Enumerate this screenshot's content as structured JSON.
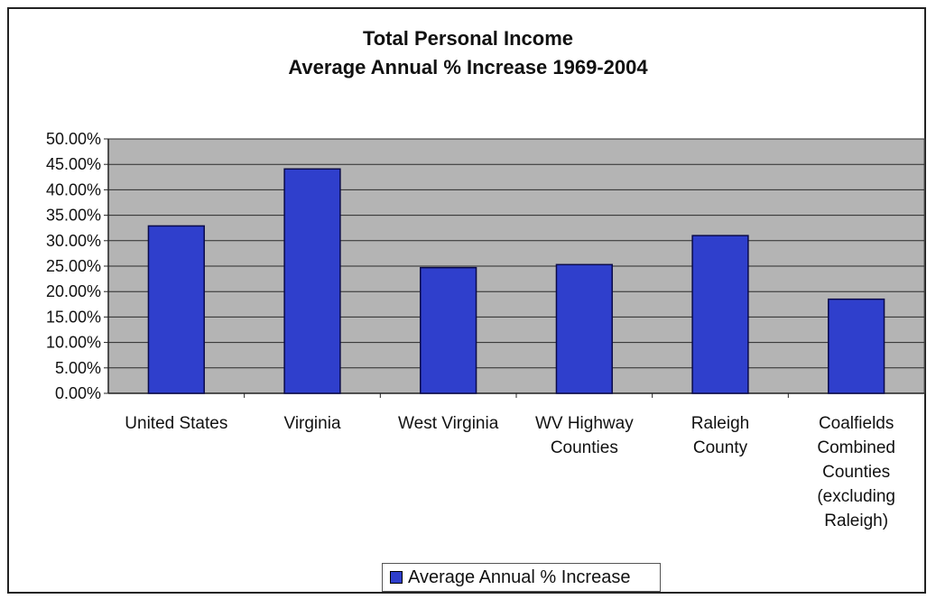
{
  "chart_data": {
    "type": "bar",
    "title_lines": [
      "Total Personal Income",
      "Average Annual % Increase 1969-2004"
    ],
    "categories": [
      [
        "United States"
      ],
      [
        "Virginia"
      ],
      [
        "West Virginia"
      ],
      [
        "WV Highway",
        "Counties"
      ],
      [
        "Raleigh",
        "County"
      ],
      [
        "Coalfields",
        "Combined",
        "Counties",
        "(excluding",
        "Raleigh)"
      ]
    ],
    "series": [
      {
        "name": "Average Annual % Increase",
        "values": [
          32.9,
          44.1,
          24.7,
          25.3,
          31.0,
          18.5
        ]
      }
    ],
    "ylim": [
      0,
      50
    ],
    "ytick_step": 5,
    "ytick_labels": [
      "0.00%",
      "5.00%",
      "10.00%",
      "15.00%",
      "20.00%",
      "25.00%",
      "30.00%",
      "35.00%",
      "40.00%",
      "45.00%",
      "50.00%"
    ],
    "grid": true,
    "legend_position": "bottom",
    "colors": {
      "bar": "#2f3fcc",
      "bar_edge": "#0a0a4a",
      "plot_bg": "#b4b4b4",
      "grid": "#2a2a2a"
    }
  }
}
